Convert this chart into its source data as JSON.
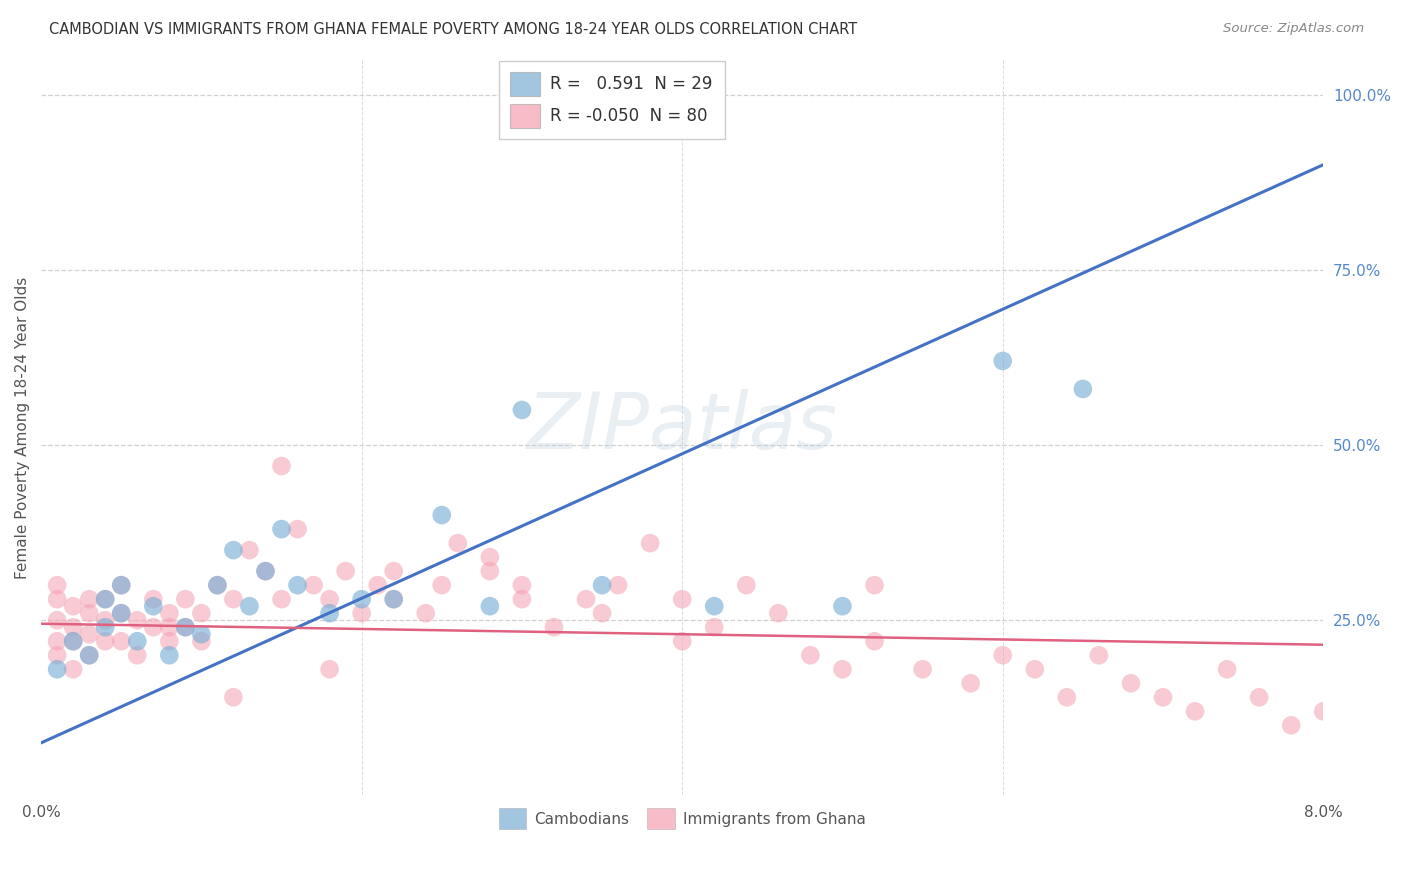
{
  "title": "CAMBODIAN VS IMMIGRANTS FROM GHANA FEMALE POVERTY AMONG 18-24 YEAR OLDS CORRELATION CHART",
  "source": "Source: ZipAtlas.com",
  "ylabel": "Female Poverty Among 18-24 Year Olds",
  "xlim": [
    0.0,
    0.08
  ],
  "ylim": [
    0.0,
    1.05
  ],
  "yticks": [
    0.0,
    0.25,
    0.5,
    0.75,
    1.0
  ],
  "ytick_labels": [
    "",
    "25.0%",
    "50.0%",
    "75.0%",
    "100.0%"
  ],
  "blue_R": 0.591,
  "blue_N": 29,
  "pink_R": -0.05,
  "pink_N": 80,
  "blue_color": "#7BAFD4",
  "pink_color": "#F4A0B0",
  "blue_line_color": "#4472C4",
  "pink_line_color": "#E06080",
  "watermark": "ZIPatlas",
  "blue_line_x0": 0.0,
  "blue_line_y0": 0.075,
  "blue_line_x1": 0.08,
  "blue_line_y1": 0.9,
  "pink_line_x0": 0.0,
  "pink_line_y0": 0.245,
  "pink_line_x1": 0.08,
  "pink_line_y1": 0.215,
  "cam_x": [
    0.001,
    0.002,
    0.003,
    0.004,
    0.004,
    0.005,
    0.005,
    0.006,
    0.007,
    0.008,
    0.009,
    0.01,
    0.011,
    0.012,
    0.013,
    0.014,
    0.015,
    0.016,
    0.018,
    0.02,
    0.022,
    0.025,
    0.028,
    0.03,
    0.035,
    0.042,
    0.05,
    0.06,
    0.065
  ],
  "cam_y": [
    0.18,
    0.22,
    0.2,
    0.24,
    0.28,
    0.26,
    0.3,
    0.22,
    0.27,
    0.2,
    0.24,
    0.23,
    0.3,
    0.35,
    0.27,
    0.32,
    0.38,
    0.3,
    0.26,
    0.28,
    0.28,
    0.4,
    0.27,
    0.55,
    0.3,
    0.27,
    0.27,
    0.62,
    0.58
  ],
  "ghana_x": [
    0.001,
    0.001,
    0.001,
    0.001,
    0.001,
    0.002,
    0.002,
    0.002,
    0.002,
    0.003,
    0.003,
    0.003,
    0.003,
    0.004,
    0.004,
    0.004,
    0.005,
    0.005,
    0.005,
    0.006,
    0.006,
    0.007,
    0.007,
    0.008,
    0.008,
    0.009,
    0.009,
    0.01,
    0.01,
    0.011,
    0.012,
    0.013,
    0.014,
    0.015,
    0.016,
    0.017,
    0.018,
    0.019,
    0.02,
    0.021,
    0.022,
    0.024,
    0.025,
    0.026,
    0.028,
    0.03,
    0.032,
    0.034,
    0.036,
    0.038,
    0.04,
    0.042,
    0.044,
    0.046,
    0.048,
    0.05,
    0.052,
    0.055,
    0.058,
    0.06,
    0.062,
    0.064,
    0.066,
    0.068,
    0.07,
    0.072,
    0.074,
    0.076,
    0.078,
    0.08,
    0.052,
    0.015,
    0.028,
    0.035,
    0.04,
    0.022,
    0.03,
    0.018,
    0.012,
    0.008
  ],
  "ghana_y": [
    0.28,
    0.25,
    0.22,
    0.2,
    0.3,
    0.27,
    0.24,
    0.22,
    0.18,
    0.26,
    0.23,
    0.2,
    0.28,
    0.25,
    0.22,
    0.28,
    0.26,
    0.22,
    0.3,
    0.25,
    0.2,
    0.28,
    0.24,
    0.26,
    0.22,
    0.28,
    0.24,
    0.26,
    0.22,
    0.3,
    0.28,
    0.35,
    0.32,
    0.47,
    0.38,
    0.3,
    0.28,
    0.32,
    0.26,
    0.3,
    0.28,
    0.26,
    0.3,
    0.36,
    0.32,
    0.3,
    0.24,
    0.28,
    0.3,
    0.36,
    0.28,
    0.24,
    0.3,
    0.26,
    0.2,
    0.18,
    0.22,
    0.18,
    0.16,
    0.2,
    0.18,
    0.14,
    0.2,
    0.16,
    0.14,
    0.12,
    0.18,
    0.14,
    0.1,
    0.12,
    0.3,
    0.28,
    0.34,
    0.26,
    0.22,
    0.32,
    0.28,
    0.18,
    0.14,
    0.24
  ]
}
